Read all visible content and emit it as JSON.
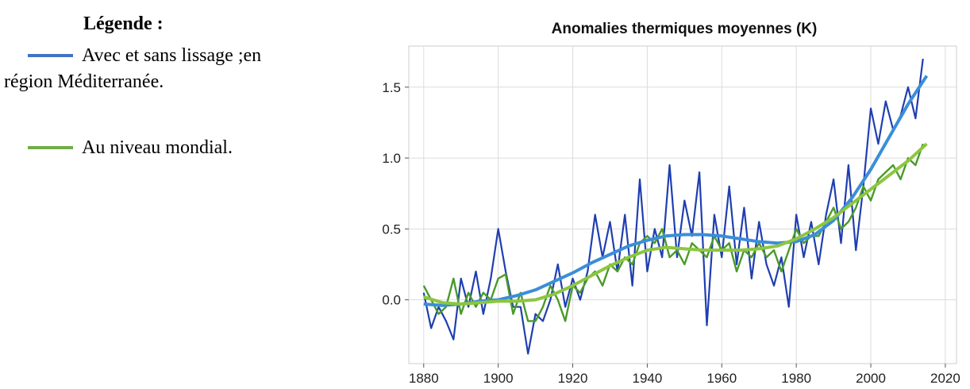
{
  "legend": {
    "title": "Légende :",
    "items": [
      {
        "color": "#4472c4",
        "lines": [
          "Avec et sans lissage ;en",
          "région Méditerranée."
        ]
      },
      {
        "color": "#70ad47",
        "lines": [
          "Au niveau mondial."
        ]
      }
    ]
  },
  "chart_data": {
    "type": "line",
    "title": "Anomalies thermiques moyennes (K)",
    "xlim": [
      1876,
      2023
    ],
    "xticks": [
      1880,
      1900,
      1920,
      1940,
      1960,
      1980,
      2000,
      2020
    ],
    "ylim": [
      -0.45,
      1.79
    ],
    "yticks": [
      {
        "value": 0,
        "label": "0.0"
      },
      0.5,
      {
        "value": 1,
        "label": "1.0"
      },
      1.5
    ],
    "grid": true,
    "series": [
      {
        "color": "#1f3fb0",
        "width": 2.2,
        "x": [
          1880,
          1882,
          1884,
          1886,
          1888,
          1890,
          1892,
          1894,
          1896,
          1898,
          1900,
          1902,
          1904,
          1906,
          1908,
          1910,
          1912,
          1914,
          1916,
          1918,
          1920,
          1922,
          1924,
          1926,
          1928,
          1930,
          1932,
          1934,
          1936,
          1938,
          1940,
          1942,
          1944,
          1946,
          1948,
          1950,
          1952,
          1954,
          1956,
          1958,
          1960,
          1962,
          1964,
          1966,
          1968,
          1970,
          1972,
          1974,
          1976,
          1978,
          1980,
          1982,
          1984,
          1986,
          1988,
          1990,
          1992,
          1994,
          1996,
          1998,
          2000,
          2002,
          2004,
          2006,
          2008,
          2010,
          2012,
          2014
        ],
        "values": [
          0.05,
          -0.2,
          -0.05,
          -0.15,
          -0.28,
          0.15,
          -0.05,
          0.2,
          -0.1,
          0.15,
          0.5,
          0.2,
          -0.05,
          -0.05,
          -0.38,
          -0.1,
          -0.15,
          0.0,
          0.25,
          -0.05,
          0.15,
          0.0,
          0.2,
          0.6,
          0.3,
          0.55,
          0.2,
          0.6,
          0.1,
          0.85,
          0.2,
          0.5,
          0.3,
          0.95,
          0.3,
          0.7,
          0.45,
          0.9,
          -0.18,
          0.6,
          0.3,
          0.8,
          0.25,
          0.65,
          0.15,
          0.55,
          0.25,
          0.1,
          0.3,
          -0.05,
          0.6,
          0.3,
          0.55,
          0.25,
          0.6,
          0.85,
          0.4,
          0.95,
          0.35,
          0.8,
          1.35,
          1.1,
          1.4,
          1.2,
          1.3,
          1.5,
          1.28,
          1.7
        ]
      },
      {
        "color": "#4a9a2a",
        "width": 2.4,
        "x": [
          1880,
          1882,
          1884,
          1886,
          1888,
          1890,
          1892,
          1894,
          1896,
          1898,
          1900,
          1902,
          1904,
          1906,
          1908,
          1910,
          1912,
          1914,
          1916,
          1918,
          1920,
          1922,
          1924,
          1926,
          1928,
          1930,
          1932,
          1934,
          1936,
          1938,
          1940,
          1942,
          1944,
          1946,
          1948,
          1950,
          1952,
          1954,
          1956,
          1958,
          1960,
          1962,
          1964,
          1966,
          1968,
          1970,
          1972,
          1974,
          1976,
          1978,
          1980,
          1982,
          1984,
          1986,
          1988,
          1990,
          1992,
          1994,
          1996,
          1998,
          2000,
          2002,
          2004,
          2006,
          2008,
          2010,
          2012,
          2014
        ],
        "values": [
          0.1,
          0.0,
          -0.1,
          -0.05,
          0.15,
          -0.1,
          0.05,
          -0.05,
          0.05,
          0.0,
          0.15,
          0.18,
          -0.1,
          0.05,
          -0.15,
          -0.15,
          -0.05,
          0.1,
          0.0,
          -0.15,
          0.1,
          0.05,
          0.15,
          0.2,
          0.1,
          0.25,
          0.2,
          0.3,
          0.25,
          0.4,
          0.45,
          0.4,
          0.5,
          0.3,
          0.35,
          0.25,
          0.4,
          0.35,
          0.3,
          0.45,
          0.35,
          0.4,
          0.2,
          0.35,
          0.3,
          0.4,
          0.3,
          0.35,
          0.2,
          0.35,
          0.5,
          0.4,
          0.45,
          0.45,
          0.55,
          0.65,
          0.5,
          0.55,
          0.65,
          0.8,
          0.7,
          0.85,
          0.9,
          0.95,
          0.85,
          1.0,
          0.95,
          1.1
        ]
      },
      {
        "color": "#3b8ed8",
        "width": 4,
        "x": [
          1880,
          1885,
          1890,
          1895,
          1900,
          1905,
          1910,
          1915,
          1920,
          1925,
          1930,
          1935,
          1940,
          1945,
          1950,
          1955,
          1960,
          1965,
          1970,
          1975,
          1980,
          1985,
          1990,
          1995,
          2000,
          2005,
          2010,
          2015
        ],
        "values": [
          -0.03,
          -0.04,
          -0.03,
          -0.01,
          0.0,
          0.03,
          0.07,
          0.13,
          0.19,
          0.26,
          0.32,
          0.38,
          0.42,
          0.45,
          0.46,
          0.46,
          0.45,
          0.43,
          0.41,
          0.4,
          0.41,
          0.46,
          0.56,
          0.72,
          0.92,
          1.15,
          1.38,
          1.58
        ]
      },
      {
        "color": "#8cc63f",
        "width": 4,
        "x": [
          1880,
          1885,
          1890,
          1895,
          1900,
          1905,
          1910,
          1915,
          1920,
          1925,
          1930,
          1935,
          1940,
          1945,
          1950,
          1955,
          1960,
          1965,
          1970,
          1975,
          1980,
          1985,
          1990,
          1995,
          2000,
          2005,
          2010,
          2015
        ],
        "values": [
          0.02,
          -0.02,
          -0.03,
          -0.02,
          -0.01,
          -0.01,
          0.0,
          0.04,
          0.1,
          0.17,
          0.24,
          0.3,
          0.35,
          0.37,
          0.36,
          0.35,
          0.35,
          0.35,
          0.36,
          0.38,
          0.43,
          0.5,
          0.58,
          0.68,
          0.78,
          0.88,
          0.98,
          1.1
        ]
      }
    ]
  }
}
